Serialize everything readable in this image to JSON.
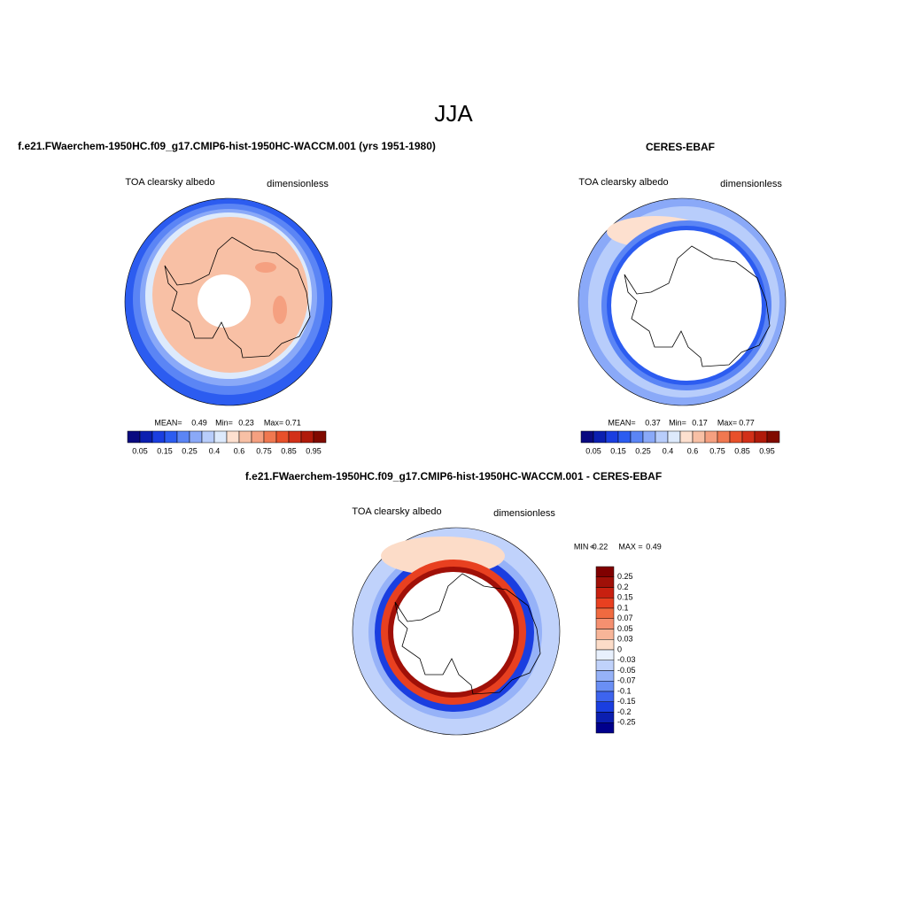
{
  "title": "JJA",
  "panels": [
    {
      "title": "f.e21.FWaerchem-1950HC.f09_g17.CMIP6-hist-1950HC-WACCM.001 (yrs 1951-1980)",
      "variable": "TOA clearsky albedo",
      "units": "dimensionless",
      "stats": [
        {
          "label": "MEAN=",
          "value": 0.49
        },
        {
          "label": "Min=",
          "value": 0.23
        },
        {
          "label": "Max=",
          "value": 0.71
        }
      ],
      "colorbar": {
        "labels": [
          0.05,
          0.15,
          0.25,
          0.4,
          0.6,
          0.75,
          0.85,
          0.95
        ],
        "colors": [
          "#0a0a80",
          "#0b1fb0",
          "#1a3ee0",
          "#2c5cf0",
          "#5b85f5",
          "#8aa9f8",
          "#b8cdfb",
          "#ddeafc",
          "#fde0cf",
          "#f8c0a5",
          "#f5a080",
          "#f07850",
          "#e8502a",
          "#d23018",
          "#b01a0a",
          "#800a00"
        ]
      }
    },
    {
      "title": "CERES-EBAF",
      "variable": "TOA clearsky albedo",
      "units": "dimensionless",
      "stats": [
        {
          "label": "MEAN=",
          "value": 0.37
        },
        {
          "label": "Min=",
          "value": 0.17
        },
        {
          "label": "Max=",
          "value": 0.77
        }
      ],
      "colorbar": {
        "labels": [
          0.05,
          0.15,
          0.25,
          0.4,
          0.6,
          0.75,
          0.85,
          0.95
        ],
        "colors": [
          "#0a0a80",
          "#0b1fb0",
          "#1a3ee0",
          "#2c5cf0",
          "#5b85f5",
          "#8aa9f8",
          "#b8cdfb",
          "#ddeafc",
          "#fde0cf",
          "#f8c0a5",
          "#f5a080",
          "#f07850",
          "#e8502a",
          "#d23018",
          "#b01a0a",
          "#800a00"
        ]
      }
    },
    {
      "title": "f.e21.FWaerchem-1950HC.f09_g17.CMIP6-hist-1950HC-WACCM.001 - CERES-EBAF",
      "variable": "TOA clearsky albedo",
      "units": "dimensionless",
      "stats": [
        {
          "label": "MIN =",
          "value": -0.22
        },
        {
          "label": "MAX =",
          "value": 0.49
        }
      ],
      "colorbar": {
        "labels": [
          0.25,
          0.2,
          0.15,
          0.1,
          0.07,
          0.05,
          0.03,
          0,
          -0.03,
          -0.05,
          -0.07,
          -0.1,
          -0.15,
          -0.2,
          -0.25
        ],
        "colors": [
          "#800000",
          "#a01008",
          "#c82010",
          "#e84020",
          "#f06a40",
          "#f59070",
          "#f8b598",
          "#fcdcc8",
          "#e8f0fd",
          "#c0d2fb",
          "#96b2f8",
          "#6a8ff5",
          "#3d64ee",
          "#1a3ee0",
          "#0b1fb0",
          "#00008c"
        ]
      }
    }
  ]
}
